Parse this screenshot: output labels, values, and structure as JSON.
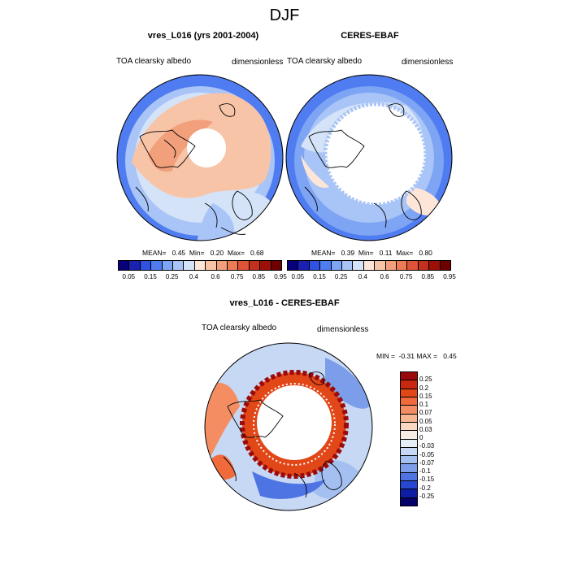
{
  "main_title": "DJF",
  "panels": {
    "model": {
      "title": "vres_L016 (yrs 2001-2004)",
      "left_label": "TOA clearsky albedo",
      "right_label": "dimensionless",
      "stats": "MEAN=   0.45  Min=   0.20  Max=   0.68"
    },
    "obs": {
      "title": "CERES-EBAF",
      "left_label": "TOA clearsky albedo",
      "right_label": "dimensionless",
      "stats": "MEAN=   0.39  Min=   0.11  Max=   0.80"
    },
    "diff": {
      "title": "vres_L016 - CERES-EBAF",
      "left_label": "TOA clearsky albedo",
      "right_label": "dimensionless",
      "minmax": "MIN =  -0.31 MAX =   0.45"
    }
  },
  "colorbar_albedo": {
    "colors": [
      "#08007a",
      "#1a20b0",
      "#2f52e0",
      "#4f7cf0",
      "#7ea4f4",
      "#a9c4f6",
      "#d4e3f8",
      "#fde6d8",
      "#f8c4a8",
      "#f2a07c",
      "#ec7c56",
      "#df5436",
      "#c3301e",
      "#9c1008",
      "#6e0000"
    ],
    "ticks": [
      "0.05",
      "0.15",
      "0.25",
      "0.4",
      "0.6",
      "0.75",
      "0.85",
      "0.95"
    ]
  },
  "colorbar_diff": {
    "colors": [
      "#9b0a0a",
      "#c8280f",
      "#e24718",
      "#f06a3c",
      "#f48e62",
      "#f8b592",
      "#fbd6c0",
      "#f8ece6",
      "#e6eef8",
      "#c6d8f4",
      "#a3c0f0",
      "#7c9eea",
      "#4e74e4",
      "#2848d2",
      "#0d1ea4",
      "#05006a"
    ],
    "ticks": [
      "0.25",
      "0.2",
      "0.15",
      "0.1",
      "0.07",
      "0.05",
      "0.03",
      "0",
      "-0.03",
      "-0.05",
      "-0.07",
      "-0.1",
      "-0.15",
      "-0.2",
      "-0.25"
    ]
  }
}
